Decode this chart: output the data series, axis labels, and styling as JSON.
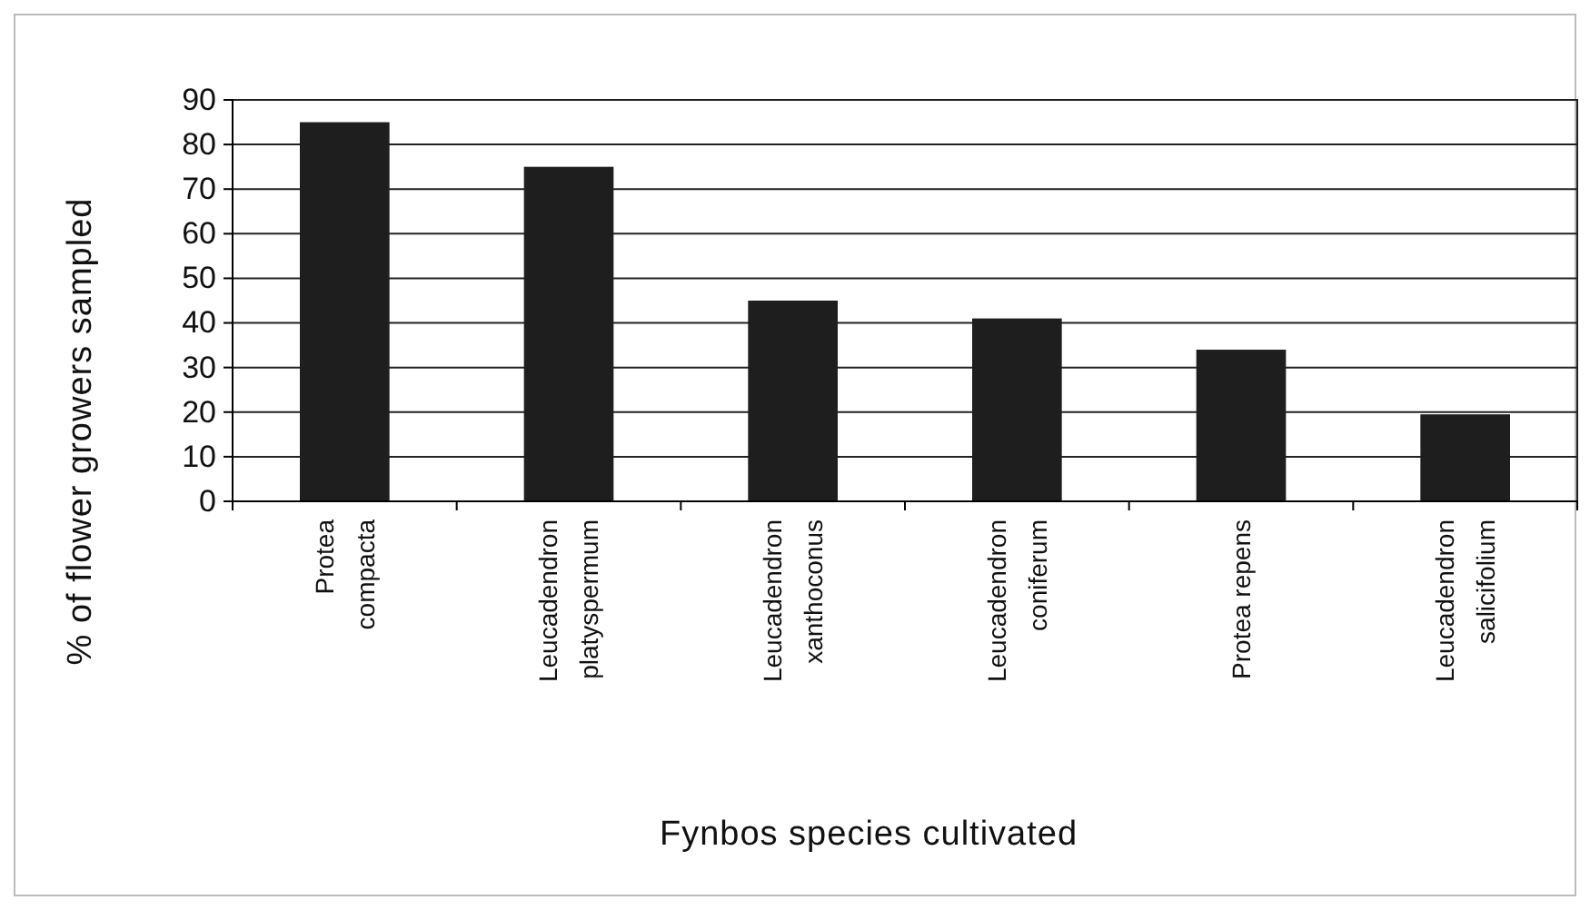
{
  "chart_data": {
    "type": "bar",
    "xlabel": "Fynbos species cultivated",
    "ylabel": "% of flower growers sampled",
    "categories": [
      "Protea compacta",
      "Leucadendron platyspermum",
      "Leucadendron xanthoconus",
      "Leucadendron coniferum",
      "Protea repens",
      "Leucadendron salicifolium"
    ],
    "values": [
      85,
      75,
      45,
      41,
      34,
      19.5
    ],
    "color": "#1e1e1e",
    "ylim": [
      0,
      90
    ],
    "yticks": [
      0,
      10,
      20,
      30,
      40,
      50,
      60,
      70,
      80,
      90
    ],
    "grid": "y"
  }
}
